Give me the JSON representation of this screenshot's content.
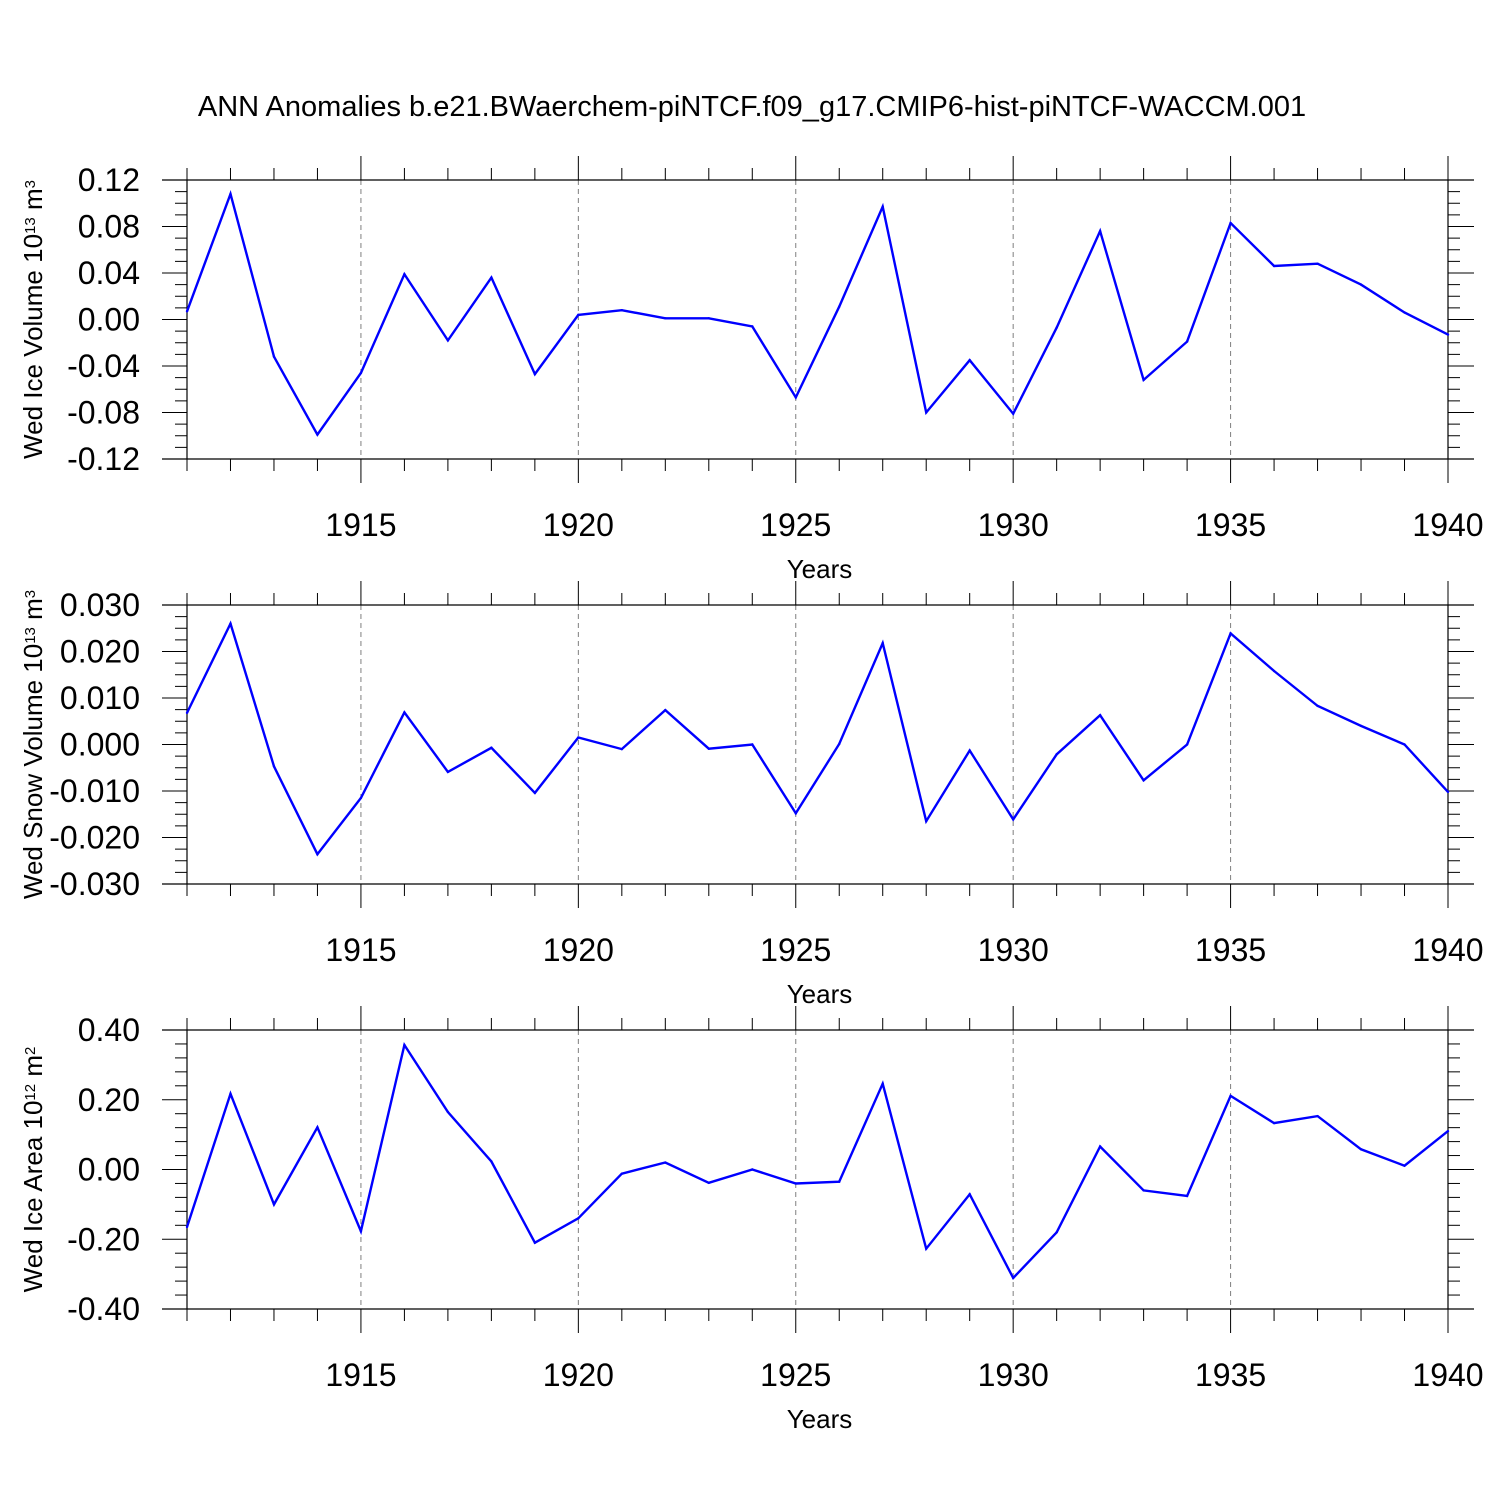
{
  "figure": {
    "title": "ANN Anomalies b.e21.BWaerchem-piNTCF.f09_g17.CMIP6-hist-piNTCF-WACCM.001"
  },
  "colors": {
    "series": "#0000ff",
    "axis": "#000000",
    "grid": "#7f7f7f"
  },
  "chart_data": [
    {
      "type": "line",
      "xlabel": "Years",
      "ylabel": {
        "main": "Wed Ice Volume 10",
        "exp": "13",
        "unit": " m",
        "unit_exp": "3"
      },
      "xlim": [
        1911,
        1940
      ],
      "ylim": [
        -0.12,
        0.12
      ],
      "yticks": [
        -0.12,
        -0.08,
        -0.04,
        0.0,
        0.04,
        0.08,
        0.12
      ],
      "ytick_labels": [
        "-0.12",
        "-0.08",
        "-0.04",
        "0.00",
        "0.04",
        "0.08",
        "0.12"
      ],
      "xticks": [
        1915,
        1920,
        1925,
        1930,
        1935,
        1940
      ],
      "xtick_labels": [
        "1915",
        "1920",
        "1925",
        "1930",
        "1935",
        "1940"
      ],
      "grid": "vertical dashed at major x ticks",
      "x": [
        1911,
        1912,
        1913,
        1914,
        1915,
        1916,
        1917,
        1918,
        1919,
        1920,
        1921,
        1922,
        1923,
        1924,
        1925,
        1926,
        1927,
        1928,
        1929,
        1930,
        1931,
        1932,
        1933,
        1934,
        1935,
        1936,
        1937,
        1938,
        1939,
        1940
      ],
      "series": [
        {
          "values": [
            0.007,
            0.108,
            -0.032,
            -0.099,
            -0.046,
            0.039,
            -0.018,
            0.036,
            -0.047,
            0.004,
            0.008,
            0.001,
            0.001,
            -0.006,
            -0.067,
            0.011,
            0.097,
            -0.08,
            -0.035,
            -0.081,
            -0.007,
            0.076,
            -0.052,
            -0.019,
            0.083,
            0.046,
            0.048,
            0.03,
            0.006,
            -0.013
          ]
        }
      ]
    },
    {
      "type": "line",
      "xlabel": "Years",
      "ylabel": {
        "main": "Wed Snow Volume 10",
        "exp": "13",
        "unit": " m",
        "unit_exp": "3"
      },
      "xlim": [
        1911,
        1940
      ],
      "ylim": [
        -0.03,
        0.03
      ],
      "yticks": [
        -0.03,
        -0.02,
        -0.01,
        0.0,
        0.01,
        0.02,
        0.03
      ],
      "ytick_labels": [
        "-0.030",
        "-0.020",
        "-0.010",
        "0.000",
        "0.010",
        "0.020",
        "0.030"
      ],
      "xticks": [
        1915,
        1920,
        1925,
        1930,
        1935,
        1940
      ],
      "xtick_labels": [
        "1915",
        "1920",
        "1925",
        "1930",
        "1935",
        "1940"
      ],
      "grid": "vertical dashed at major x ticks",
      "x": [
        1911,
        1912,
        1913,
        1914,
        1915,
        1916,
        1917,
        1918,
        1919,
        1920,
        1921,
        1922,
        1923,
        1924,
        1925,
        1926,
        1927,
        1928,
        1929,
        1930,
        1931,
        1932,
        1933,
        1934,
        1935,
        1936,
        1937,
        1938,
        1939,
        1940
      ],
      "series": [
        {
          "values": [
            0.0068,
            0.026,
            -0.0047,
            -0.0236,
            -0.0115,
            0.0069,
            -0.0059,
            -0.0007,
            -0.0104,
            0.0015,
            -0.001,
            0.0074,
            -0.0009,
            0.0,
            -0.0148,
            0.0001,
            0.0218,
            -0.0165,
            -0.0013,
            -0.0161,
            -0.0021,
            0.0063,
            -0.0077,
            0.0,
            0.0239,
            0.0158,
            0.0083,
            0.004,
            0.0,
            -0.0102
          ]
        }
      ]
    },
    {
      "type": "line",
      "xlabel": "Years",
      "ylabel": {
        "main": "Wed Ice Area 10",
        "exp": "12",
        "unit": " m",
        "unit_exp": "2"
      },
      "xlim": [
        1911,
        1940
      ],
      "ylim": [
        -0.4,
        0.4
      ],
      "yticks": [
        -0.4,
        -0.2,
        0.0,
        0.2,
        0.4
      ],
      "ytick_labels": [
        "-0.40",
        "-0.20",
        "0.00",
        "0.20",
        "0.40"
      ],
      "xticks": [
        1915,
        1920,
        1925,
        1930,
        1935,
        1940
      ],
      "xtick_labels": [
        "1915",
        "1920",
        "1925",
        "1930",
        "1935",
        "1940"
      ],
      "grid": "vertical dashed at major x ticks",
      "x": [
        1911,
        1912,
        1913,
        1914,
        1915,
        1916,
        1917,
        1918,
        1919,
        1920,
        1921,
        1922,
        1923,
        1924,
        1925,
        1926,
        1927,
        1928,
        1929,
        1930,
        1931,
        1932,
        1933,
        1934,
        1935,
        1936,
        1937,
        1938,
        1939,
        1940
      ],
      "series": [
        {
          "values": [
            -0.165,
            0.217,
            -0.1,
            0.121,
            -0.177,
            0.357,
            0.165,
            0.023,
            -0.21,
            -0.14,
            -0.012,
            0.02,
            -0.038,
            0.0,
            -0.04,
            -0.035,
            0.246,
            -0.227,
            -0.071,
            -0.311,
            -0.18,
            0.066,
            -0.06,
            -0.076,
            0.211,
            0.133,
            0.153,
            0.058,
            0.011,
            0.11
          ]
        }
      ]
    }
  ]
}
